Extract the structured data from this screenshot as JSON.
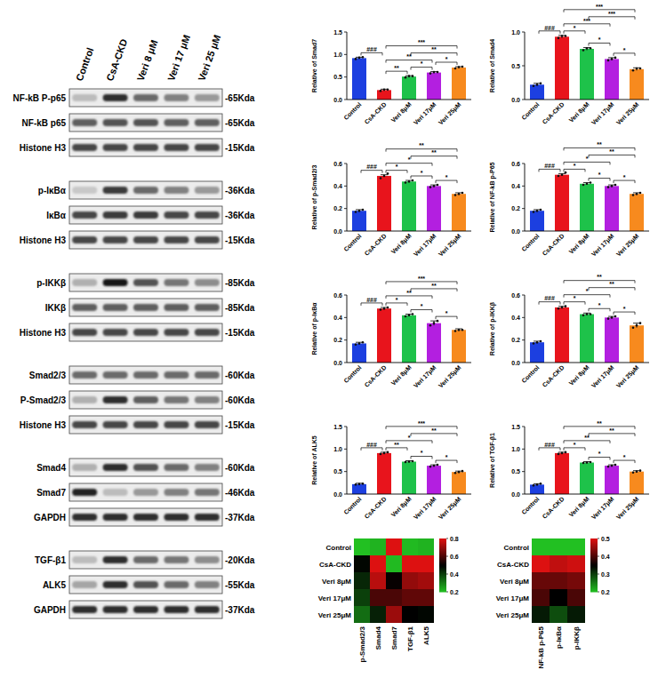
{
  "chart_data": [
    {
      "type": "bar",
      "y_label": "Relative of Smad7",
      "categories": [
        "Control",
        "CsA-CKD",
        "Veri 8μM",
        "Veri 17μM",
        "Veri 25μM"
      ],
      "values": [
        0.92,
        0.21,
        0.51,
        0.6,
        0.71
      ],
      "errors": [
        0.02,
        0.02,
        0.02,
        0.02,
        0.02
      ],
      "points": [
        [
          0.9,
          0.93,
          0.94
        ],
        [
          0.19,
          0.22,
          0.22
        ],
        [
          0.49,
          0.52,
          0.52
        ],
        [
          0.58,
          0.61,
          0.61
        ],
        [
          0.69,
          0.72,
          0.73
        ]
      ],
      "colors": [
        "#1c3fe0",
        "#e8141c",
        "#1ec24a",
        "#b31fe0",
        "#f78a1e"
      ],
      "ylim": [
        0,
        1.5
      ],
      "yticks": [
        {
          "value": 0,
          "label": "0.0"
        },
        0.5,
        {
          "value": 1,
          "label": "1.0"
        },
        1.5
      ],
      "annotations": [
        {
          "from": 0,
          "to": 1,
          "label": "###"
        },
        {
          "from": 1,
          "to": 2,
          "label": "**"
        },
        {
          "from": 1,
          "to": 3,
          "label": "**"
        },
        {
          "from": 1,
          "to": 4,
          "label": "***"
        },
        {
          "from": 2,
          "to": 3,
          "label": "*"
        },
        {
          "from": 2,
          "to": 4,
          "label": "**"
        },
        {
          "from": 3,
          "to": 4,
          "label": "*"
        }
      ]
    },
    {
      "type": "bar",
      "y_label": "Relative of Smad4",
      "categories": [
        "Control",
        "CsA-CKD",
        "Veri 8μM",
        "Veri 17μM",
        "Veri 25μM"
      ],
      "values": [
        0.22,
        0.93,
        0.75,
        0.6,
        0.45
      ],
      "errors": [
        0.02,
        0.02,
        0.02,
        0.02,
        0.02
      ],
      "points": [
        [
          0.2,
          0.22,
          0.24
        ],
        [
          0.91,
          0.94,
          0.94
        ],
        [
          0.73,
          0.76,
          0.76
        ],
        [
          0.58,
          0.6,
          0.62
        ],
        [
          0.43,
          0.46,
          0.46
        ]
      ],
      "colors": [
        "#1c3fe0",
        "#e8141c",
        "#1ec24a",
        "#b31fe0",
        "#f78a1e"
      ],
      "ylim": [
        0,
        1.0
      ],
      "yticks": [
        {
          "value": 0,
          "label": "0.0"
        },
        0.5,
        {
          "value": 1,
          "label": "1.0"
        }
      ],
      "annotations": [
        {
          "from": 0,
          "to": 1,
          "label": "###"
        },
        {
          "from": 1,
          "to": 2,
          "label": "*"
        },
        {
          "from": 1,
          "to": 3,
          "label": "***"
        },
        {
          "from": 1,
          "to": 4,
          "label": "***"
        },
        {
          "from": 2,
          "to": 3,
          "label": "*"
        },
        {
          "from": 2,
          "to": 4,
          "label": "***"
        },
        {
          "from": 3,
          "to": 4,
          "label": "*"
        }
      ]
    },
    {
      "type": "bar",
      "y_label": "Relative of p-Smad2/3",
      "categories": [
        "Control",
        "CsA-CKD",
        "Veri 8μM",
        "Veri 17μM",
        "Veri 25μM"
      ],
      "values": [
        0.18,
        0.49,
        0.44,
        0.4,
        0.33
      ],
      "errors": [
        0.01,
        0.01,
        0.01,
        0.01,
        0.01
      ],
      "points": [
        [
          0.17,
          0.18,
          0.19
        ],
        [
          0.47,
          0.49,
          0.51
        ],
        [
          0.43,
          0.44,
          0.45
        ],
        [
          0.39,
          0.4,
          0.41
        ],
        [
          0.32,
          0.33,
          0.34
        ]
      ],
      "colors": [
        "#1c3fe0",
        "#e8141c",
        "#1ec24a",
        "#b31fe0",
        "#f78a1e"
      ],
      "ylim": [
        0,
        0.6
      ],
      "yticks": [
        {
          "value": 0,
          "label": "0.0"
        },
        0.2,
        0.4,
        0.6
      ],
      "annotations": [
        {
          "from": 0,
          "to": 1,
          "label": "###"
        },
        {
          "from": 1,
          "to": 2,
          "label": "*"
        },
        {
          "from": 1,
          "to": 3,
          "label": "*"
        },
        {
          "from": 1,
          "to": 4,
          "label": "**"
        },
        {
          "from": 2,
          "to": 3,
          "label": "*"
        },
        {
          "from": 2,
          "to": 4,
          "label": "**"
        },
        {
          "from": 3,
          "to": 4,
          "label": "*"
        }
      ]
    },
    {
      "type": "bar",
      "y_label": "Relative of NF-kB p-P65",
      "categories": [
        "Control",
        "CsA-CKD",
        "Veri 8μM",
        "Veri 17μM",
        "Veri 25μM"
      ],
      "values": [
        0.18,
        0.5,
        0.42,
        0.4,
        0.33
      ],
      "errors": [
        0.01,
        0.01,
        0.01,
        0.01,
        0.01
      ],
      "points": [
        [
          0.17,
          0.18,
          0.19
        ],
        [
          0.49,
          0.5,
          0.52
        ],
        [
          0.41,
          0.42,
          0.43
        ],
        [
          0.39,
          0.4,
          0.41
        ],
        [
          0.32,
          0.33,
          0.34
        ]
      ],
      "colors": [
        "#1c3fe0",
        "#e8141c",
        "#1ec24a",
        "#b31fe0",
        "#f78a1e"
      ],
      "ylim": [
        0,
        0.6
      ],
      "yticks": [
        {
          "value": 0,
          "label": "0.0"
        },
        0.2,
        0.4,
        0.6
      ],
      "annotations": [
        {
          "from": 0,
          "to": 1,
          "label": "###"
        },
        {
          "from": 1,
          "to": 2,
          "label": "*"
        },
        {
          "from": 1,
          "to": 3,
          "label": "*"
        },
        {
          "from": 1,
          "to": 4,
          "label": "**"
        },
        {
          "from": 2,
          "to": 3,
          "label": "*"
        },
        {
          "from": 2,
          "to": 4,
          "label": "**"
        },
        {
          "from": 3,
          "to": 4,
          "label": "*"
        }
      ]
    },
    {
      "type": "bar",
      "y_label": "Relative of p-IκBα",
      "categories": [
        "Control",
        "CsA-CKD",
        "Veri 8μM",
        "Veri 17μM",
        "Veri 25μM"
      ],
      "values": [
        0.17,
        0.48,
        0.42,
        0.35,
        0.29
      ],
      "errors": [
        0.01,
        0.01,
        0.01,
        0.02,
        0.01
      ],
      "points": [
        [
          0.16,
          0.17,
          0.18
        ],
        [
          0.47,
          0.48,
          0.49
        ],
        [
          0.41,
          0.42,
          0.43
        ],
        [
          0.33,
          0.35,
          0.37
        ],
        [
          0.28,
          0.29,
          0.29
        ]
      ],
      "colors": [
        "#1c3fe0",
        "#e8141c",
        "#1ec24a",
        "#b31fe0",
        "#f78a1e"
      ],
      "ylim": [
        0,
        0.6
      ],
      "yticks": [
        {
          "value": 0,
          "label": "0.0"
        },
        0.2,
        0.4,
        0.6
      ],
      "annotations": [
        {
          "from": 0,
          "to": 1,
          "label": "###"
        },
        {
          "from": 1,
          "to": 2,
          "label": "*"
        },
        {
          "from": 1,
          "to": 3,
          "label": "**"
        },
        {
          "from": 1,
          "to": 4,
          "label": "***"
        },
        {
          "from": 2,
          "to": 3,
          "label": "*"
        },
        {
          "from": 2,
          "to": 4,
          "label": "**"
        },
        {
          "from": 3,
          "to": 4,
          "label": "*"
        }
      ]
    },
    {
      "type": "bar",
      "y_label": "Relative of p-IKKβ",
      "categories": [
        "Control",
        "CsA-CKD",
        "Veri 8μM",
        "Veri 17μM",
        "Veri 25μM"
      ],
      "values": [
        0.18,
        0.49,
        0.43,
        0.4,
        0.33
      ],
      "errors": [
        0.01,
        0.01,
        0.01,
        0.01,
        0.02
      ],
      "points": [
        [
          0.17,
          0.18,
          0.19
        ],
        [
          0.48,
          0.49,
          0.5
        ],
        [
          0.42,
          0.43,
          0.43
        ],
        [
          0.39,
          0.4,
          0.41
        ],
        [
          0.31,
          0.33,
          0.35
        ]
      ],
      "colors": [
        "#1c3fe0",
        "#e8141c",
        "#1ec24a",
        "#b31fe0",
        "#f78a1e"
      ],
      "ylim": [
        0,
        0.6
      ],
      "yticks": [
        {
          "value": 0,
          "label": "0.0"
        },
        0.2,
        0.4,
        0.6
      ],
      "annotations": [
        {
          "from": 0,
          "to": 1,
          "label": "###"
        },
        {
          "from": 1,
          "to": 2,
          "label": "*"
        },
        {
          "from": 1,
          "to": 3,
          "label": "*"
        },
        {
          "from": 1,
          "to": 4,
          "label": "**"
        },
        {
          "from": 2,
          "to": 3,
          "label": "*"
        },
        {
          "from": 2,
          "to": 4,
          "label": "**"
        },
        {
          "from": 3,
          "to": 4,
          "label": "*"
        }
      ]
    },
    {
      "type": "bar",
      "y_label": "Relative of ALK5",
      "categories": [
        "Control",
        "CsA-CKD",
        "Veri 8μM",
        "Veri 17μM",
        "Veri 25μM"
      ],
      "values": [
        0.22,
        0.91,
        0.72,
        0.63,
        0.49
      ],
      "errors": [
        0.02,
        0.02,
        0.02,
        0.02,
        0.02
      ],
      "points": [
        [
          0.21,
          0.22,
          0.23
        ],
        [
          0.89,
          0.91,
          0.93
        ],
        [
          0.71,
          0.72,
          0.73
        ],
        [
          0.61,
          0.63,
          0.65
        ],
        [
          0.47,
          0.49,
          0.51
        ]
      ],
      "colors": [
        "#1c3fe0",
        "#e8141c",
        "#1ec24a",
        "#b31fe0",
        "#f78a1e"
      ],
      "ylim": [
        0,
        1.5
      ],
      "yticks": [
        {
          "value": 0,
          "label": "0.0"
        },
        0.5,
        {
          "value": 1,
          "label": "1.0"
        },
        1.5
      ],
      "annotations": [
        {
          "from": 0,
          "to": 1,
          "label": "###"
        },
        {
          "from": 1,
          "to": 2,
          "label": "**"
        },
        {
          "from": 1,
          "to": 3,
          "label": "*"
        },
        {
          "from": 1,
          "to": 4,
          "label": "***"
        },
        {
          "from": 2,
          "to": 3,
          "label": "*"
        },
        {
          "from": 2,
          "to": 4,
          "label": "**"
        },
        {
          "from": 3,
          "to": 4,
          "label": "*"
        }
      ]
    },
    {
      "type": "bar",
      "y_label": "Relative of TGF-β1",
      "categories": [
        "Control",
        "CsA-CKD",
        "Veri 8μM",
        "Veri 17μM",
        "Veri 25μM"
      ],
      "values": [
        0.21,
        0.91,
        0.7,
        0.63,
        0.5
      ],
      "errors": [
        0.02,
        0.02,
        0.02,
        0.02,
        0.02
      ],
      "points": [
        [
          0.19,
          0.21,
          0.23
        ],
        [
          0.89,
          0.91,
          0.93
        ],
        [
          0.69,
          0.7,
          0.71
        ],
        [
          0.61,
          0.63,
          0.65
        ],
        [
          0.48,
          0.5,
          0.52
        ]
      ],
      "colors": [
        "#1c3fe0",
        "#e8141c",
        "#1ec24a",
        "#b31fe0",
        "#f78a1e"
      ],
      "ylim": [
        0,
        1.5
      ],
      "yticks": [
        {
          "value": 0,
          "label": "0.0"
        },
        0.5,
        {
          "value": 1,
          "label": "1.0"
        },
        1.5
      ],
      "annotations": [
        {
          "from": 0,
          "to": 1,
          "label": "###"
        },
        {
          "from": 1,
          "to": 2,
          "label": "*"
        },
        {
          "from": 1,
          "to": 3,
          "label": "**"
        },
        {
          "from": 1,
          "to": 4,
          "label": "**"
        },
        {
          "from": 2,
          "to": 3,
          "label": "*"
        },
        {
          "from": 2,
          "to": 4,
          "label": "**"
        },
        {
          "from": 3,
          "to": 4,
          "label": "*"
        }
      ]
    },
    {
      "type": "heatmap",
      "rows": [
        "Control",
        "CsA-CKD",
        "Veri 8μM",
        "Veri 17μM",
        "Veri 25μM"
      ],
      "columns": [
        "p-Smad2/3",
        "Smad4",
        "Smad7",
        "TGF-β1",
        "ALK5"
      ],
      "cells": [
        [
          0.18,
          0.22,
          0.92,
          0.21,
          0.22
        ],
        [
          0.49,
          0.93,
          0.21,
          0.91,
          0.91
        ],
        [
          0.44,
          0.75,
          0.51,
          0.7,
          0.72
        ],
        [
          0.4,
          0.6,
          0.6,
          0.63,
          0.63
        ],
        [
          0.33,
          0.45,
          0.71,
          0.5,
          0.49
        ]
      ],
      "colors": [
        "#22c022",
        "#000000",
        "#dd1111"
      ],
      "colorbar": {
        "range": [
          0.2,
          0.8
        ],
        "ticks": [
          0.2,
          0.4,
          0.6,
          0.8
        ]
      }
    },
    {
      "type": "heatmap",
      "rows": [
        "Control",
        "CsA-CKD",
        "Veri 8μM",
        "Veri 17μM",
        "Veri 25μM"
      ],
      "columns": [
        "NF-kB p-P65",
        "p-IκBα",
        "p-IKKβ"
      ],
      "cells": [
        [
          0.18,
          0.17,
          0.18
        ],
        [
          0.5,
          0.48,
          0.49
        ],
        [
          0.42,
          0.42,
          0.43
        ],
        [
          0.4,
          0.35,
          0.4
        ],
        [
          0.33,
          0.29,
          0.33
        ]
      ],
      "colors": [
        "#22c022",
        "#000000",
        "#dd1111"
      ],
      "colorbar": {
        "range": [
          0.2,
          0.5
        ],
        "ticks": [
          0.2,
          0.3,
          0.4,
          0.5
        ]
      }
    }
  ],
  "blot": {
    "lanes": [
      "Control",
      "CsA-CKD",
      "Veri 8 μM",
      "Veri 17 μM",
      "Veri 25 μM"
    ],
    "rows": [
      {
        "label": "NF-kB P-p65",
        "size": "-65Kda",
        "intensity": [
          0.2,
          0.8,
          0.55,
          0.45,
          0.35
        ]
      },
      {
        "label": "NF-kB p65",
        "size": "-65Kda",
        "intensity": [
          0.6,
          0.65,
          0.65,
          0.6,
          0.6
        ]
      },
      {
        "label": "Histone H3",
        "size": "-15Kda",
        "intensity": [
          0.7,
          0.7,
          0.7,
          0.7,
          0.7
        ]
      },
      {
        "label": "p-IκBα",
        "size": "-36Kda",
        "intensity": [
          0.15,
          0.75,
          0.55,
          0.45,
          0.35
        ]
      },
      {
        "label": "IκBα",
        "size": "-36Kda",
        "intensity": [
          0.7,
          0.75,
          0.75,
          0.7,
          0.7
        ]
      },
      {
        "label": "Histone H3",
        "size": "-15Kda",
        "intensity": [
          0.7,
          0.7,
          0.7,
          0.7,
          0.7
        ]
      },
      {
        "label": "p-IKKβ",
        "size": "-85Kda",
        "intensity": [
          0.25,
          0.9,
          0.65,
          0.5,
          0.4
        ]
      },
      {
        "label": "IKKβ",
        "size": "-85Kda",
        "intensity": [
          0.6,
          0.6,
          0.6,
          0.6,
          0.6
        ]
      },
      {
        "label": "Histone H3",
        "size": "-15Kda",
        "intensity": [
          0.7,
          0.7,
          0.7,
          0.7,
          0.7
        ]
      },
      {
        "label": "Smad2/3",
        "size": "-60Kda",
        "intensity": [
          0.55,
          0.55,
          0.55,
          0.55,
          0.55
        ]
      },
      {
        "label": "P-Smad2/3",
        "size": "-60Kda",
        "intensity": [
          0.25,
          0.8,
          0.6,
          0.5,
          0.45
        ]
      },
      {
        "label": "Histone H3",
        "size": "-15Kda",
        "intensity": [
          0.7,
          0.7,
          0.7,
          0.7,
          0.7
        ]
      },
      {
        "label": "Smad4",
        "size": "-60Kda",
        "intensity": [
          0.25,
          0.8,
          0.65,
          0.55,
          0.45
        ]
      },
      {
        "label": "Smad7",
        "size": "-46Kda",
        "intensity": [
          0.85,
          0.2,
          0.35,
          0.45,
          0.5
        ]
      },
      {
        "label": "GAPDH",
        "size": "-37Kda",
        "intensity": [
          0.8,
          0.8,
          0.8,
          0.8,
          0.8
        ]
      },
      {
        "label": "TGF-β1",
        "size": "-20Kda",
        "intensity": [
          0.2,
          0.8,
          0.55,
          0.5,
          0.4
        ]
      },
      {
        "label": "ALK5",
        "size": "-55Kda",
        "intensity": [
          0.3,
          0.8,
          0.65,
          0.55,
          0.45
        ]
      },
      {
        "label": "GAPDH",
        "size": "-37Kda",
        "intensity": [
          0.8,
          0.8,
          0.8,
          0.8,
          0.8
        ]
      }
    ]
  }
}
